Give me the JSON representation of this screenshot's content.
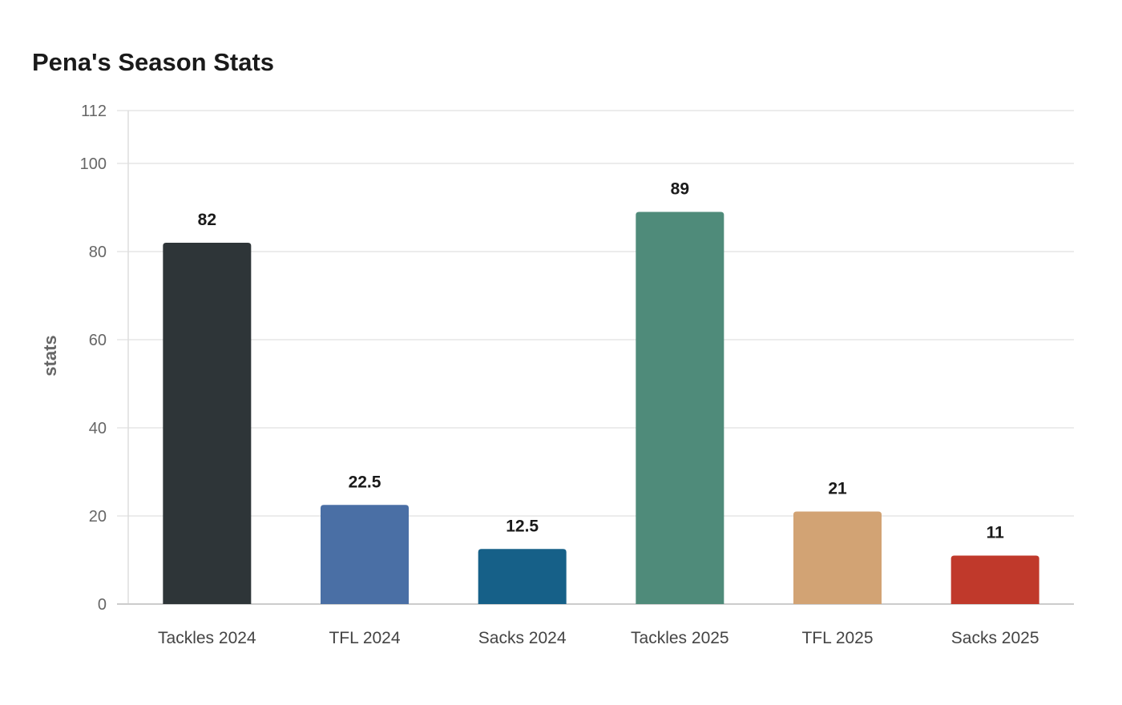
{
  "chart_data": {
    "type": "bar",
    "title": "Pena's Season Stats",
    "xlabel": "",
    "ylabel": "stats",
    "ylim": [
      0,
      112
    ],
    "yticks": [
      0,
      20,
      40,
      60,
      80,
      100,
      112
    ],
    "grid": true,
    "categories": [
      "Tackles 2024",
      "TFL 2024",
      "Sacks 2024",
      "Tackles 2025",
      "TFL 2025",
      "Sacks 2025"
    ],
    "values": [
      82,
      22.5,
      12.5,
      89,
      21,
      11
    ],
    "value_labels": [
      "82",
      "22.5",
      "12.5",
      "89",
      "21",
      "11"
    ],
    "colors": [
      "#2e3538",
      "#4a6fa5",
      "#166088",
      "#4f8b7a",
      "#d2a374",
      "#c0392b"
    ]
  }
}
